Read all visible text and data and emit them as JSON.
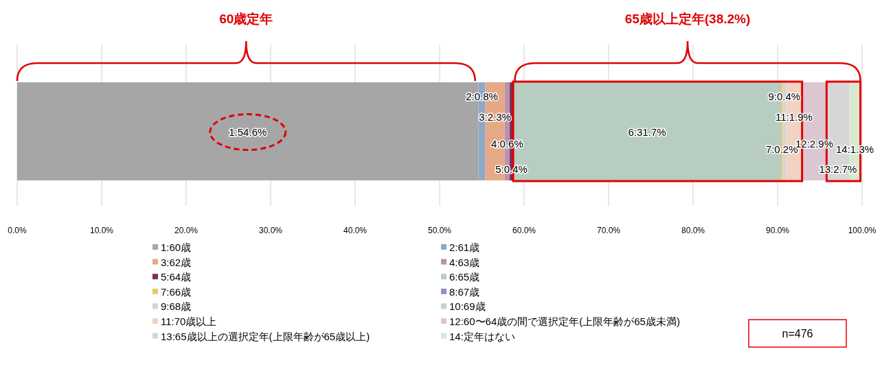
{
  "chart_data": {
    "type": "bar",
    "orientation": "horizontal",
    "stacked": true,
    "categories": [
      null
    ],
    "xlim": [
      0,
      100
    ],
    "xticks": [
      {
        "value": 0,
        "label": "0.0%"
      },
      {
        "value": 10,
        "label": "10.0%"
      },
      {
        "value": 20,
        "label": "20.0%"
      },
      {
        "value": 30,
        "label": "30.0%"
      },
      {
        "value": 40,
        "label": "40.0%"
      },
      {
        "value": 50,
        "label": "50.0%"
      },
      {
        "value": 60,
        "label": "60.0%"
      },
      {
        "value": 70,
        "label": "70.0%"
      },
      {
        "value": 80,
        "label": "80.0%"
      },
      {
        "value": 90,
        "label": "90.0%"
      },
      {
        "value": 100,
        "label": "100.0%"
      }
    ],
    "grid": "x",
    "legend": "bottom",
    "series": [
      {
        "name": "1:60歳",
        "color": "#a6a6a6",
        "values": [
          54.6
        ],
        "value_labels": [
          "1:54.6%"
        ]
      },
      {
        "name": "2:61歳",
        "color": "#8ea9c8",
        "values": [
          0.8
        ],
        "value_labels": [
          "2:0.8%"
        ]
      },
      {
        "name": "3:62歳",
        "color": "#e6a886",
        "values": [
          2.3
        ],
        "value_labels": [
          "3:2.3%"
        ]
      },
      {
        "name": "4:63歳",
        "color": "#b893aa",
        "values": [
          0.6
        ],
        "value_labels": [
          "4:0.6%"
        ]
      },
      {
        "name": "5:64歳",
        "color": "#7b2f5a",
        "values": [
          0.4
        ],
        "value_labels": [
          "5:0.4%"
        ]
      },
      {
        "name": "6:65歳",
        "color": "#b7cdc2",
        "values": [
          31.7
        ],
        "value_labels": [
          "6:31.7%"
        ]
      },
      {
        "name": "7:66歳",
        "color": "#e8c873",
        "values": [
          0.2
        ],
        "value_labels": [
          "7:0.2%"
        ]
      },
      {
        "name": "8:67歳",
        "color": "#8c8fc8",
        "values": [
          0
        ],
        "value_labels": [
          null
        ]
      },
      {
        "name": "9:68歳",
        "color": "#d4d4d4",
        "values": [
          0.4
        ],
        "value_labels": [
          "9:0.4%"
        ]
      },
      {
        "name": "10:69歳",
        "color": "#c4d0dc",
        "values": [
          0
        ],
        "value_labels": [
          null
        ]
      },
      {
        "name": "11:70歳以上",
        "color": "#f2d2c2",
        "values": [
          1.9
        ],
        "value_labels": [
          "11:1.9%"
        ]
      },
      {
        "name": "12:60〜64歳の間で選択定年(上限年齢が65歳未満)",
        "color": "#dcc6d2",
        "values": [
          2.9
        ],
        "value_labels": [
          "12:2.9%"
        ]
      },
      {
        "name": "13:65歳以上の選択定年(上限年齢が65歳以上)",
        "color": "#d6d6d6",
        "values": [
          2.7
        ],
        "value_labels": [
          "13:2.7%"
        ]
      },
      {
        "name": "14:定年はない",
        "color": "#d8e9cf",
        "values": [
          1.3
        ],
        "value_labels": [
          "14:1.3%"
        ]
      }
    ],
    "annotations": [
      "60歳定年",
      "65歳以上定年(38.2%)",
      "n=476"
    ]
  }
}
